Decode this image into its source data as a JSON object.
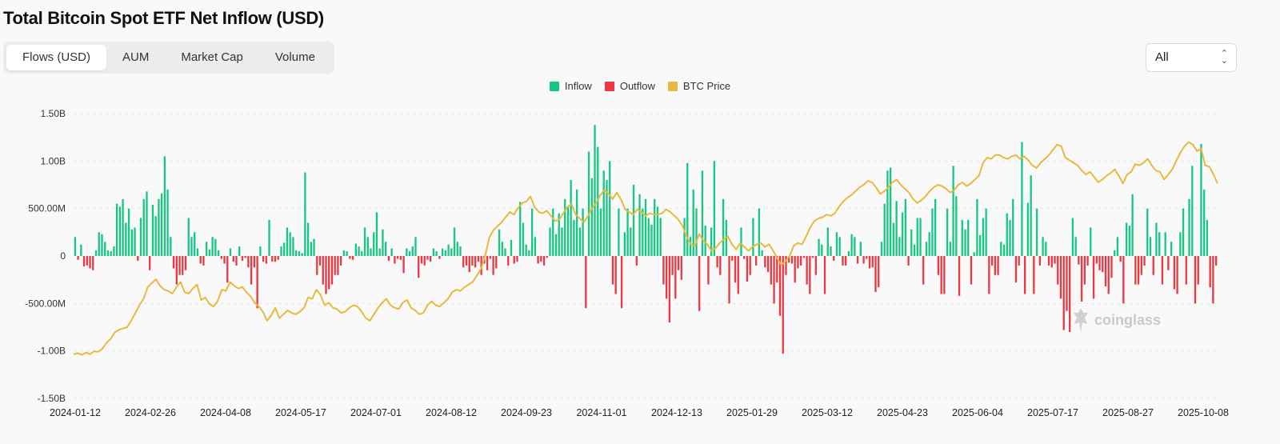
{
  "title": "Total Bitcoin Spot ETF Net Inflow (USD)",
  "tabs": [
    {
      "label": "Flows (USD)",
      "active": true
    },
    {
      "label": "AUM",
      "active": false
    },
    {
      "label": "Market Cap",
      "active": false
    },
    {
      "label": "Volume",
      "active": false
    }
  ],
  "range_select": {
    "value": "All"
  },
  "watermark": "coinglass",
  "colors": {
    "inflow": "#16c784",
    "outflow": "#ea3943",
    "price": "#e8b93f",
    "grid": "#e6e6e6",
    "text": "#333333"
  },
  "chart_data": {
    "type": "bar",
    "y_ticks": [
      "1.50B",
      "1.00B",
      "500.00M",
      "0",
      "-500.00M",
      "-1.00B",
      "-1.50B"
    ],
    "ylim": [
      -1500,
      1500
    ],
    "y_unit": "USD millions",
    "x_tick_labels": [
      "2024-01-12",
      "2024-02-26",
      "2024-04-08",
      "2024-05-17",
      "2024-07-01",
      "2024-08-12",
      "2024-09-23",
      "2024-11-01",
      "2024-12-13",
      "2025-01-29",
      "2025-03-12",
      "2025-04-23",
      "2025-06-04",
      "2025-07-17",
      "2025-08-27",
      "2025-10-08"
    ],
    "grid": true,
    "legend_position": "top-center",
    "series": [
      {
        "name": "Inflow",
        "type": "bar",
        "color": "#16c784"
      },
      {
        "name": "Outflow",
        "type": "bar",
        "color": "#ea3943"
      },
      {
        "name": "BTC Price",
        "type": "line",
        "color": "#e8b93f"
      }
    ],
    "flows": [
      200,
      -40,
      120,
      -110,
      -100,
      -130,
      -150,
      60,
      250,
      230,
      150,
      60,
      50,
      100,
      550,
      520,
      600,
      350,
      500,
      280,
      300,
      -50,
      400,
      600,
      680,
      -150,
      540,
      420,
      600,
      660,
      1050,
      700,
      200,
      -130,
      -300,
      -200,
      -200,
      -150,
      400,
      200,
      250,
      80,
      -80,
      -100,
      150,
      70,
      200,
      180,
      60,
      -30,
      -80,
      -280,
      80,
      -60,
      -100,
      100,
      -50,
      -20,
      -120,
      -300,
      -120,
      -550,
      100,
      -60,
      -80,
      380,
      -60,
      -60,
      -40,
      100,
      140,
      300,
      250,
      200,
      60,
      50,
      30,
      880,
      350,
      150,
      180,
      -200,
      -100,
      -300,
      -400,
      -350,
      -300,
      -200,
      -200,
      -100,
      60,
      50,
      -30,
      -40,
      130,
      100,
      50,
      300,
      200,
      80,
      250,
      460,
      80,
      280,
      150,
      -50,
      80,
      -80,
      -30,
      -40,
      -180,
      80,
      50,
      100,
      200,
      -230,
      -80,
      -100,
      -40,
      -60,
      80,
      50,
      -30,
      80,
      60,
      120,
      80,
      300,
      150,
      100,
      -120,
      -100,
      -170,
      -100,
      -120,
      -60,
      -200,
      -80,
      -150,
      -30,
      -200,
      -130,
      280,
      150,
      80,
      -100,
      170,
      -80,
      -60,
      570,
      350,
      120,
      60,
      500,
      200,
      -80,
      -60,
      -100,
      -20,
      300,
      500,
      230,
      450,
      300,
      600,
      520,
      800,
      380,
      700,
      300,
      500,
      -550,
      1100,
      820,
      1380,
      1150,
      500,
      900,
      800,
      1000,
      -300,
      -400,
      500,
      -550,
      250,
      500,
      300,
      750,
      -100,
      650,
      500,
      600,
      400,
      330,
      600,
      520,
      400,
      -300,
      -450,
      -700,
      -200,
      -450,
      -150,
      -250,
      400,
      980,
      200,
      700,
      500,
      -580,
      900,
      320,
      -300,
      300,
      1000,
      -120,
      -200,
      600,
      380,
      -500,
      -50,
      -280,
      -400,
      300,
      -30,
      -270,
      -200,
      400,
      -100,
      500,
      60,
      -120,
      -170,
      -300,
      -500,
      -280,
      -630,
      -1030,
      -200,
      -70,
      -80,
      -280,
      -130,
      -100,
      -20,
      -300,
      -400,
      -20,
      -200,
      180,
      120,
      -400,
      300,
      100,
      -50,
      250,
      200,
      -100,
      -100,
      50,
      230,
      200,
      -80,
      150,
      -80,
      -30,
      -130,
      -120,
      -380,
      -330,
      150,
      550,
      900,
      930,
      350,
      580,
      200,
      460,
      600,
      -100,
      280,
      120,
      400,
      400,
      -300,
      150,
      250,
      500,
      600,
      -200,
      -400,
      -400,
      500,
      150,
      950,
      630,
      -420,
      380,
      280,
      380,
      -300,
      40,
      600,
      220,
      400,
      500,
      -400,
      -100,
      -200,
      -200,
      150,
      120,
      450,
      380,
      600,
      -280,
      -100,
      1200,
      -400,
      560,
      850,
      -400,
      500,
      -100,
      200,
      150,
      -100,
      -120,
      -80,
      -300,
      -450,
      -780,
      -580,
      -800,
      400,
      200,
      -90,
      -480,
      -300,
      -100,
      300,
      -450,
      -80,
      -150,
      -170,
      -320,
      -400,
      -230,
      60,
      200,
      -60,
      -500,
      350,
      320,
      650,
      -300,
      -300,
      -200,
      -100,
      500,
      200,
      -200,
      350,
      250,
      -300,
      250,
      -150,
      150,
      -350,
      -400,
      250,
      500,
      -300,
      600,
      950,
      -500,
      -300,
      1180,
      700,
      380,
      -330,
      -500,
      -100
    ],
    "btc_price": [
      42000,
      42500,
      41800,
      42700,
      42100,
      43200,
      43000,
      44200,
      46500,
      48000,
      50500,
      51500,
      52000,
      52500,
      55000,
      58000,
      61000,
      63500,
      68000,
      69500,
      71000,
      68500,
      67000,
      66500,
      65500,
      68000,
      70000,
      66000,
      65500,
      67500,
      69000,
      63000,
      64000,
      61500,
      60500,
      62500,
      67000,
      66500,
      70000,
      68500,
      67500,
      68000,
      66000,
      64500,
      62000,
      60500,
      58500,
      55000,
      57000,
      60000,
      56000,
      57500,
      59000,
      58000,
      57500,
      58500,
      60000,
      64000,
      63500,
      67000,
      65000,
      61000,
      62000,
      60000,
      59500,
      58000,
      58500,
      60000,
      61000,
      60500,
      58500,
      56000,
      55000,
      57500,
      60000,
      62000,
      63500,
      61000,
      60000,
      59500,
      62000,
      63000,
      60000,
      59000,
      57500,
      58000,
      61000,
      62500,
      61000,
      60500,
      62000,
      63500,
      66000,
      67000,
      66500,
      68000,
      69000,
      70000,
      72500,
      75000,
      80000,
      87000,
      90000,
      91500,
      93000,
      95000,
      97000,
      96000,
      98500,
      100500,
      101000,
      103000,
      99000,
      97000,
      96500,
      97500,
      95500,
      93500,
      94000,
      96500,
      99000,
      100000,
      96000,
      94500,
      93000,
      95500,
      98500,
      100500,
      103500,
      105500,
      104000,
      102000,
      104500,
      102000,
      98000,
      97000,
      96000,
      98000,
      97000,
      95500,
      96500,
      96000,
      96000,
      96500,
      98000,
      97000,
      95500,
      94000,
      91500,
      87500,
      84500,
      84000,
      88500,
      86000,
      84500,
      82000,
      83000,
      85000,
      86500,
      87500,
      84500,
      82500,
      85000,
      83500,
      82000,
      83500,
      84500,
      85000,
      83500,
      84500,
      82000,
      79000,
      76500,
      78000,
      80000,
      84000,
      85000,
      84500,
      87500,
      91000,
      93500,
      94500,
      95000,
      96000,
      95500,
      96500,
      99000,
      101000,
      102500,
      103500,
      105000,
      106500,
      107500,
      109000,
      108500,
      106500,
      104000,
      105000,
      106500,
      108500,
      109500,
      107500,
      106000,
      104500,
      102000,
      100500,
      101500,
      103000,
      105000,
      106500,
      107500,
      107000,
      106000,
      104500,
      105500,
      107500,
      108500,
      107000,
      108000,
      109500,
      111000,
      116000,
      118000,
      117500,
      119000,
      119000,
      118000,
      117500,
      118500,
      119000,
      117500,
      118500,
      117000,
      115000,
      114000,
      116000,
      117500,
      119000,
      121000,
      123000,
      122500,
      118000,
      117000,
      116000,
      115000,
      113000,
      111500,
      112500,
      110500,
      108500,
      109500,
      111000,
      112000,
      113500,
      111000,
      108000,
      111500,
      112500,
      115500,
      115000,
      116000,
      117500,
      115000,
      113000,
      112500,
      109500,
      111500,
      113500,
      117000,
      120000,
      122500,
      124000,
      123000,
      120500,
      121500,
      115000,
      114500,
      111500,
      108000
    ]
  }
}
